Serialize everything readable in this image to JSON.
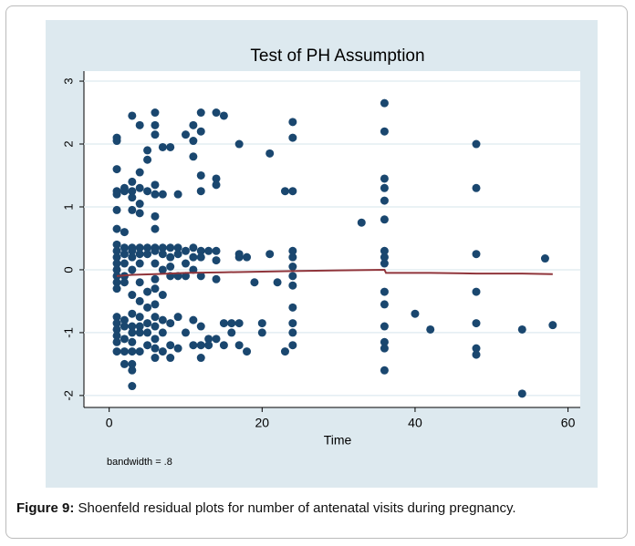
{
  "chart_data": {
    "type": "scatter",
    "title": "Test of PH Assumption",
    "x_label": "Time",
    "note": "bandwidth = .8",
    "color": "#1a476f",
    "x": [
      1,
      1,
      1,
      1,
      1,
      1,
      1,
      1,
      1,
      1,
      1,
      1,
      1,
      1,
      1,
      1,
      1,
      1,
      1,
      1,
      1,
      2,
      2,
      2,
      2,
      2,
      2,
      2,
      2,
      2,
      2,
      2,
      2,
      2,
      3,
      3,
      3,
      3,
      3,
      3,
      3,
      3,
      3,
      3,
      3,
      3,
      3,
      3,
      3,
      3,
      3,
      3,
      4,
      4,
      4,
      4,
      4,
      4,
      4,
      4,
      4,
      4,
      4,
      4,
      4,
      4,
      5,
      5,
      5,
      5,
      5,
      5,
      5,
      5,
      5,
      5,
      6,
      6,
      6,
      6,
      6,
      6,
      6,
      6,
      6,
      6,
      6,
      6,
      6,
      6,
      6,
      6,
      6,
      6,
      7,
      7,
      7,
      7,
      7,
      7,
      7,
      7,
      7,
      8,
      8,
      8,
      8,
      8,
      8,
      8,
      8,
      9,
      9,
      9,
      9,
      9,
      9,
      10,
      10,
      10,
      10,
      10,
      11,
      11,
      11,
      11,
      11,
      11,
      11,
      11,
      12,
      12,
      12,
      12,
      12,
      12,
      12,
      12,
      12,
      12,
      13,
      13,
      13,
      14,
      14,
      14,
      14,
      14,
      14,
      14,
      15,
      15,
      15,
      16,
      16,
      17,
      17,
      17,
      17,
      17,
      18,
      18,
      19,
      20,
      20,
      21,
      21,
      22,
      23,
      23,
      24,
      24,
      24,
      24,
      24,
      24,
      24,
      24,
      24,
      24,
      24,
      24,
      33,
      36,
      36,
      36,
      36,
      36,
      36,
      36,
      36,
      36,
      36,
      36,
      36,
      36,
      36,
      36,
      40,
      42,
      48,
      48,
      48,
      48,
      48,
      48,
      48,
      54,
      54,
      57,
      58
    ],
    "y": [
      2.1,
      2.05,
      1.6,
      1.25,
      1.2,
      0.95,
      0.65,
      0.4,
      0.3,
      0.2,
      0.1,
      0,
      -0.1,
      -0.2,
      -0.3,
      -0.75,
      -0.85,
      -0.95,
      -1.05,
      -1.15,
      -1.3,
      1.3,
      1.25,
      0.6,
      0.35,
      0.25,
      0.1,
      -0.1,
      -0.2,
      -0.8,
      -0.9,
      -1.1,
      -1.3,
      -1.5,
      2.45,
      1.4,
      1.25,
      1.15,
      0.95,
      0.35,
      0.3,
      0.2,
      0,
      -0.4,
      -0.7,
      -0.9,
      -1,
      -1.15,
      -1.3,
      -1.5,
      -1.6,
      -1.85,
      2.3,
      1.55,
      1.3,
      1.05,
      0.9,
      0.35,
      0.25,
      0.1,
      -0.2,
      -0.5,
      -0.75,
      -0.9,
      -1,
      -1.3,
      1.9,
      1.75,
      1.25,
      0.35,
      0.25,
      -0.35,
      -0.6,
      -0.85,
      -1,
      -1.2,
      2.5,
      2.3,
      2.15,
      1.35,
      1.2,
      0.85,
      0.65,
      0.35,
      0.3,
      0.1,
      -0.15,
      -0.3,
      -0.55,
      -0.75,
      -0.9,
      -1.1,
      -1.25,
      -1.4,
      1.95,
      1.2,
      0.35,
      0.25,
      0,
      -0.4,
      -0.8,
      -1,
      -1.3,
      1.95,
      0.35,
      0.2,
      0.05,
      -0.1,
      -0.85,
      -1.2,
      -1.4,
      1.2,
      0.35,
      0.25,
      -0.1,
      -0.75,
      -1.25,
      2.15,
      0.3,
      0.1,
      -0.1,
      -1,
      2.3,
      2.05,
      1.8,
      0.35,
      0.2,
      0,
      -0.8,
      -1.2,
      2.5,
      2.2,
      1.5,
      1.25,
      0.3,
      0.2,
      -0.1,
      -0.9,
      -1.2,
      -1.4,
      0.3,
      -1.1,
      -1.2,
      2.5,
      1.45,
      1.35,
      0.3,
      0.15,
      -0.15,
      -1.1,
      2.45,
      -0.85,
      -1.2,
      -0.85,
      -1,
      2.0,
      0.25,
      0.2,
      -0.85,
      -1.2,
      0.2,
      -1.3,
      -0.2,
      -0.85,
      -1,
      1.85,
      0.25,
      -0.2,
      1.25,
      -1.3,
      2.35,
      2.1,
      1.25,
      0.3,
      0.2,
      0.05,
      -0.1,
      -0.25,
      -0.6,
      -0.85,
      -1,
      -1.2,
      0.75,
      2.65,
      2.2,
      1.45,
      1.3,
      1.1,
      0.8,
      0.3,
      0.2,
      0.1,
      -0.35,
      -0.55,
      -0.9,
      -1.15,
      -1.25,
      -1.6,
      -0.7,
      -0.95,
      2.0,
      1.3,
      0.25,
      -0.35,
      -0.85,
      -1.25,
      -1.35,
      -0.95,
      -1.97,
      0.18,
      -0.88
    ],
    "lowess": {
      "color": "#90353b",
      "x": [
        1,
        3,
        6,
        10,
        15,
        20,
        24,
        30,
        36,
        36.2,
        42,
        48,
        54,
        58
      ],
      "y": [
        -0.1,
        -0.08,
        -0.07,
        -0.05,
        -0.04,
        -0.03,
        -0.02,
        -0.01,
        0.0,
        -0.05,
        -0.05,
        -0.06,
        -0.06,
        -0.07
      ]
    },
    "xlim": [
      -3.3,
      61.6
    ],
    "ylim": [
      -2.19,
      3.16
    ],
    "xticks": [
      0,
      20,
      40,
      60
    ],
    "yticks": [
      -2,
      -1,
      0,
      1,
      2,
      3
    ],
    "grid": true
  },
  "caption": {
    "label": "Figure 9:",
    "text": "Shoenfeld residual plots for number of antenatal visits during pregnancy."
  }
}
